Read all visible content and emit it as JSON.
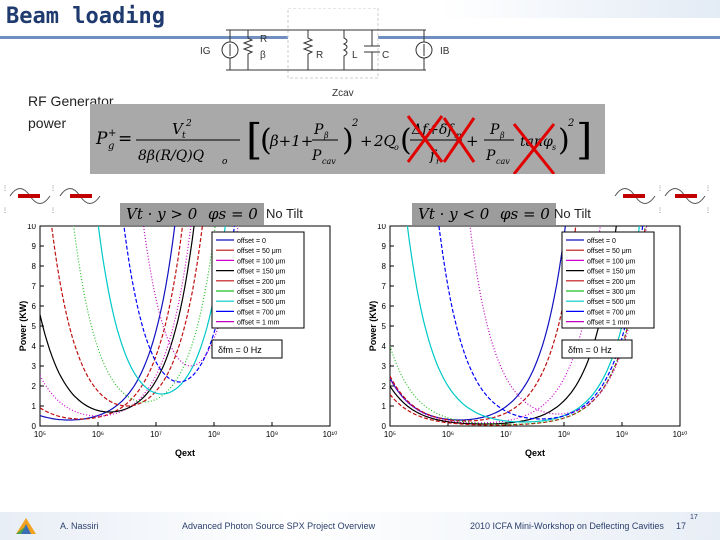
{
  "slide": {
    "title": "Beam loading",
    "rf_generator_label": "RF Generator power",
    "circuit": {
      "labels": [
        "I",
        "G",
        "R",
        "β",
        "R",
        "L",
        "C",
        "I",
        "B"
      ],
      "ig": "IG",
      "r_top": "R",
      "beta": "β",
      "r": "R",
      "l": "L",
      "c": "C",
      "ib": "IB",
      "zcav": "Zcav"
    },
    "equation_description": "P_g^+ expression",
    "left_panel": {
      "cond1": "Vt · y > 0",
      "cond2": "φs = 0",
      "tilt": "No Tilt",
      "ylabel": "Power (KW)",
      "xlabel": "Qext",
      "df_label": "δfm = 0 Hz"
    },
    "right_panel": {
      "cond1": "Vt · y < 0",
      "cond2": "φs = 0",
      "tilt": "No Tilt",
      "ylabel": "Power (KW)",
      "xlabel": "Qext",
      "df_label": "δfm = 0 Hz"
    },
    "footer": {
      "author": "A. Nassiri",
      "event": "Advanced Photon Source SPX Project Overview",
      "workshop": "2010 ICFA Mini-Workshop on Deflecting Cavities",
      "page": "17",
      "page_sup": "17"
    }
  },
  "chart_data": [
    {
      "type": "line",
      "ylabel": "Power (KW)",
      "xlabel": "Qext",
      "ylim": [
        0,
        10
      ],
      "yticks": [
        "0",
        "1",
        "2",
        "3",
        "4",
        "5",
        "6",
        "7",
        "8",
        "9",
        "10"
      ],
      "xticks": [
        "10⁵",
        "10⁶",
        "10⁷",
        "10⁸",
        "10⁹",
        "10¹⁰"
      ],
      "log_x": true,
      "grid": false,
      "legend": [
        "offset = 0",
        "offset = 50 μm",
        "offset = 100 μm",
        "offset = 150 μm",
        "offset = 200 μm",
        "offset = 300 μm",
        "offset = 500 μm",
        "offset = 700 μm",
        "offset = 1 mm"
      ],
      "series": [
        {
          "name": "offset = 0",
          "color": "#1010c0",
          "minimum": 0.3,
          "qopt": 5.5
        },
        {
          "name": "offset = 50 μm",
          "color": "#c01010",
          "minimum": 0.35,
          "qopt": 5.7
        },
        {
          "name": "offset = 100 μm",
          "color": "#d000d0",
          "minimum": 0.5,
          "qopt": 6.0
        },
        {
          "name": "offset = 150 μm",
          "color": "#000000",
          "minimum": 0.7,
          "qopt": 6.2
        },
        {
          "name": "offset = 200 μm",
          "color": "#c01010",
          "minimum": 1.0,
          "qopt": 6.5
        },
        {
          "name": "offset = 300 μm",
          "color": "#20c020",
          "minimum": 1.2,
          "qopt": 6.8
        },
        {
          "name": "offset = 500 μm",
          "color": "#00c8c8",
          "minimum": 1.6,
          "qopt": 7.1
        },
        {
          "name": "offset = 700 μm",
          "color": "#0000ff",
          "minimum": 2.2,
          "qopt": 7.4
        },
        {
          "name": "offset = 1 mm",
          "color": "#c000c0",
          "minimum": 3.0,
          "qopt": 7.6
        }
      ]
    },
    {
      "type": "line",
      "ylabel": "Power (KW)",
      "xlabel": "Qext",
      "ylim": [
        0,
        10
      ],
      "yticks": [
        "0",
        "1",
        "2",
        "3",
        "4",
        "5",
        "6",
        "7",
        "8",
        "9",
        "10"
      ],
      "xticks": [
        "10⁵",
        "10⁶",
        "10⁷",
        "10⁸",
        "10⁹",
        "10¹⁰"
      ],
      "log_x": true,
      "grid": false,
      "legend": [
        "offset = 0",
        "offset = 50 μm",
        "offset = 100 μm",
        "offset = 150 μm",
        "offset = 200 μm",
        "offset = 300 μm",
        "offset = 500 μm",
        "offset = 700 μm",
        "offset = 1 mm"
      ],
      "series": [
        {
          "name": "offset = 0",
          "color": "#1010c0",
          "minimum": 0.3,
          "qopt": 6.2
        },
        {
          "name": "offset = 50 μm",
          "color": "#c01010",
          "minimum": 0.25,
          "qopt": 6.3
        },
        {
          "name": "offset = 100 μm",
          "color": "#d000d0",
          "minimum": 0.15,
          "qopt": 6.5
        },
        {
          "name": "offset = 150 μm",
          "color": "#000000",
          "minimum": 0.1,
          "qopt": 6.6
        },
        {
          "name": "offset = 200 μm",
          "color": "#c01010",
          "minimum": 0.05,
          "qopt": 6.8
        },
        {
          "name": "offset = 300 μm",
          "color": "#20c020",
          "minimum": 0.08,
          "qopt": 7.0
        },
        {
          "name": "offset = 500 μm",
          "color": "#00c8c8",
          "minimum": 0.2,
          "qopt": 7.3
        },
        {
          "name": "offset = 700 μm",
          "color": "#0000ff",
          "minimum": 0.35,
          "qopt": 7.6
        },
        {
          "name": "offset = 1 mm",
          "color": "#c000c0",
          "minimum": 0.6,
          "qopt": 7.9
        }
      ]
    }
  ]
}
